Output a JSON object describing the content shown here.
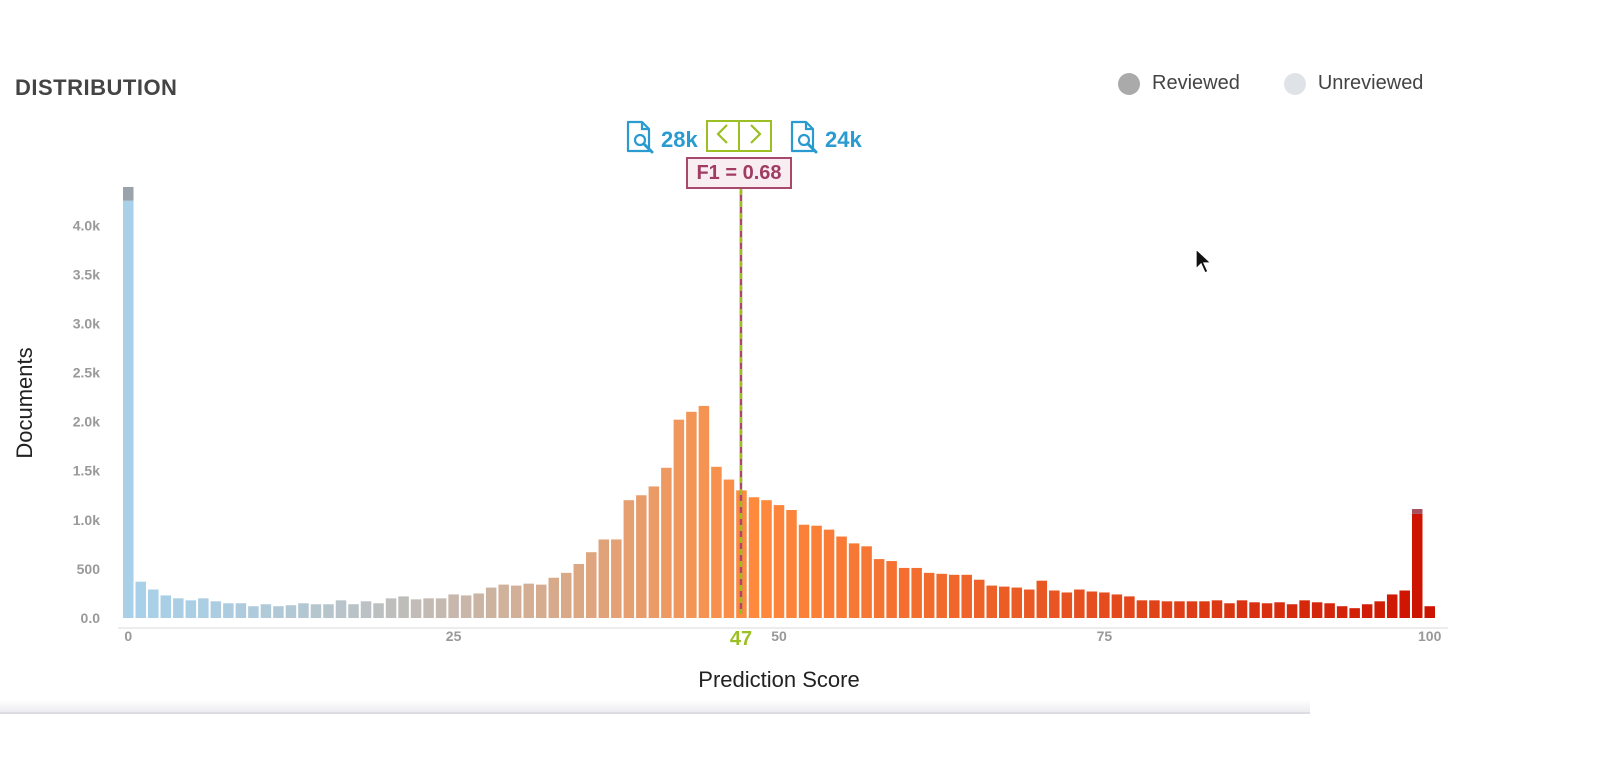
{
  "header": {
    "title": "DISTRIBUTION"
  },
  "legend": [
    {
      "label": "Reviewed",
      "color": "#aaaaaa"
    },
    {
      "label": "Unreviewed",
      "color": "#dfe3e7"
    }
  ],
  "controls": {
    "below_count": "28k",
    "above_count": "24k",
    "prev_icon": "chevron-left-icon",
    "next_icon": "chevron-right-icon",
    "doc_icon": "document-search-icon",
    "f1_label": "F1 = 0.68"
  },
  "colors": {
    "threshold_green": "#9cbf24",
    "threshold_maroon": "#a8486c",
    "low_score": "#a8d0e8",
    "mid_score": "#ff8a3d",
    "high_score": "#cc1200"
  },
  "chart_data": {
    "type": "bar",
    "xlabel": "Prediction Score",
    "ylabel": "Documents",
    "xlim": [
      0,
      100
    ],
    "ylim": [
      0,
      4400
    ],
    "x_ticks": [
      "0",
      "25",
      "50",
      "75",
      "100"
    ],
    "y_ticks": [
      "0.0",
      "500",
      "1.0k",
      "1.5k",
      "2.0k",
      "2.5k",
      "3.0k",
      "3.5k",
      "4.0k"
    ],
    "threshold": {
      "value": 47,
      "label": "47"
    },
    "series": [
      {
        "name": "Unreviewed",
        "values": [
          4250,
          370,
          290,
          230,
          200,
          180,
          200,
          170,
          150,
          150,
          120,
          140,
          120,
          130,
          150,
          140,
          140,
          180,
          140,
          170,
          150,
          200,
          220,
          190,
          200,
          200,
          240,
          230,
          250,
          310,
          340,
          330,
          350,
          340,
          410,
          460,
          550,
          670,
          800,
          800,
          1200,
          1250,
          1340,
          1530,
          2020,
          2100,
          2160,
          1540,
          1410,
          1300,
          1230,
          1200,
          1150,
          1100,
          950,
          940,
          900,
          830,
          760,
          730,
          600,
          580,
          510,
          510,
          460,
          450,
          440,
          440,
          390,
          330,
          320,
          310,
          290,
          380,
          280,
          260,
          290,
          270,
          260,
          240,
          220,
          180,
          180,
          170,
          170,
          170,
          170,
          180,
          150,
          180,
          160,
          150,
          160,
          140,
          180,
          160,
          150,
          120,
          100,
          140,
          170,
          240,
          280,
          1060,
          120
        ]
      },
      {
        "name": "Reviewed",
        "values": [
          140,
          0,
          0,
          0,
          0,
          0,
          0,
          0,
          0,
          0,
          0,
          0,
          0,
          0,
          0,
          0,
          0,
          0,
          0,
          0,
          0,
          0,
          0,
          0,
          0,
          0,
          0,
          0,
          0,
          0,
          0,
          0,
          0,
          0,
          0,
          0,
          0,
          0,
          0,
          0,
          0,
          0,
          0,
          0,
          0,
          0,
          0,
          0,
          0,
          0,
          0,
          0,
          0,
          0,
          0,
          0,
          0,
          0,
          0,
          0,
          0,
          0,
          0,
          0,
          0,
          0,
          0,
          0,
          0,
          0,
          0,
          0,
          0,
          0,
          0,
          0,
          0,
          0,
          0,
          0,
          0,
          0,
          0,
          0,
          0,
          0,
          0,
          0,
          0,
          0,
          0,
          0,
          0,
          0,
          0,
          0,
          0,
          0,
          0,
          0,
          0,
          0,
          0,
          50,
          0
        ]
      }
    ]
  }
}
